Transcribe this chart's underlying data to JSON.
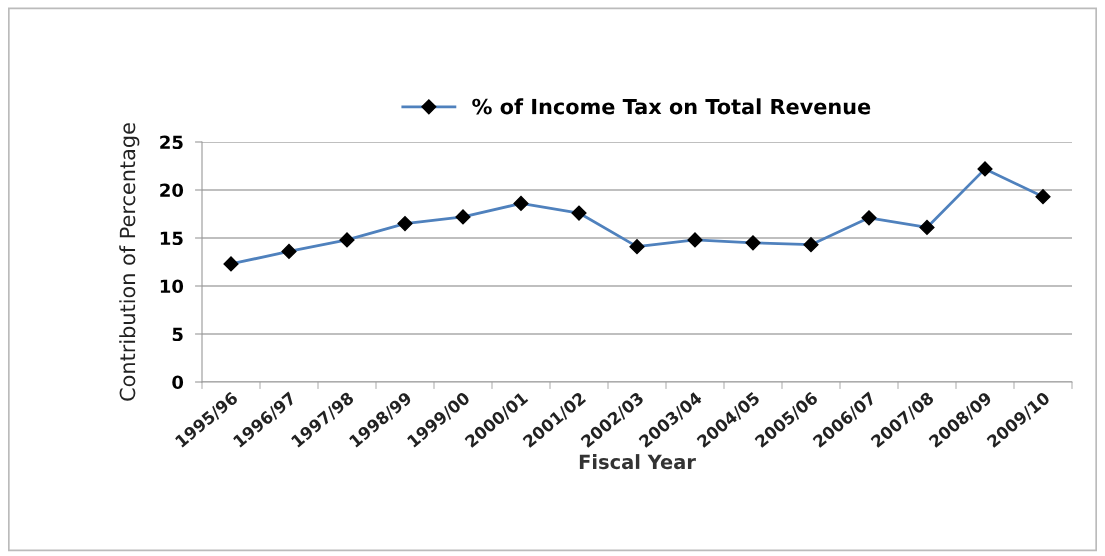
{
  "chart_data": {
    "type": "line",
    "xlabel": "Fiscal Year",
    "ylabel": "Contribution of Percentage",
    "categories": [
      "1995/96",
      "1996/97",
      "1997/98",
      "1998/99",
      "1999/00",
      "2000/01",
      "2001/02",
      "2002/03",
      "2003/04",
      "2004/05",
      "2005/06",
      "2006/07",
      "2007/08",
      "2008/09",
      "2009/10"
    ],
    "series": [
      {
        "name": "% of Income Tax on Total Revenue",
        "color": "#4f81bd",
        "values": [
          12.3,
          13.6,
          14.8,
          16.5,
          17.2,
          18.6,
          17.6,
          14.1,
          14.8,
          14.5,
          14.3,
          17.1,
          16.1,
          22.2,
          19.3
        ]
      }
    ],
    "ylim": [
      0,
      25
    ],
    "yticks": [
      0,
      5,
      10,
      15,
      20,
      25
    ],
    "grid": "y",
    "legend": "top",
    "marker": "diamond",
    "line_style": "solid"
  }
}
